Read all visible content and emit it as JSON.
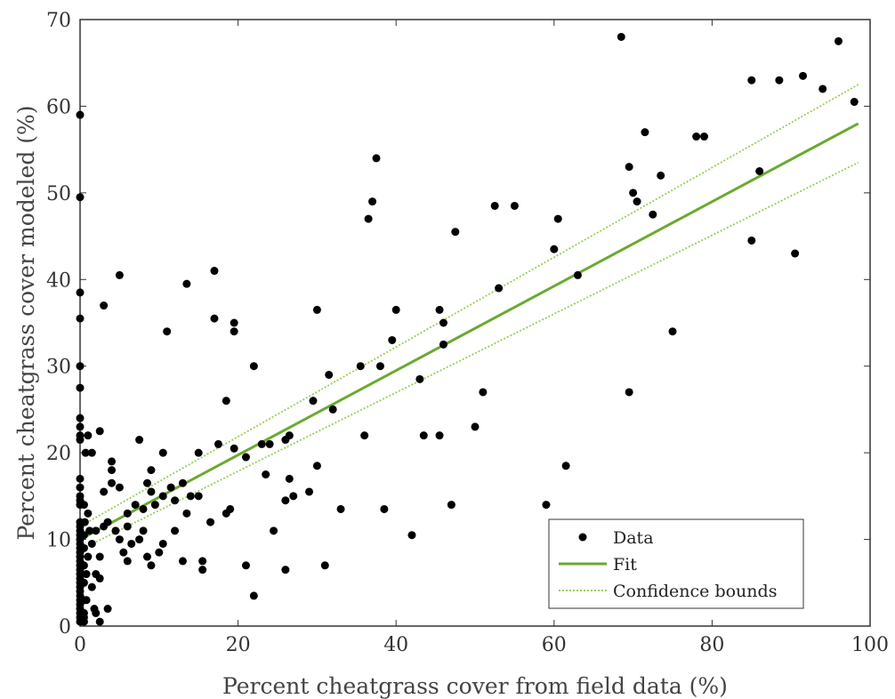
{
  "chart_data": {
    "type": "scatter",
    "title": "",
    "xlabel": "Percent cheatgrass cover from  field data (%)",
    "ylabel": "Percent cheatgrass cover modeled (%)",
    "xlim": [
      0,
      100
    ],
    "ylim": [
      0,
      70
    ],
    "xticks": [
      0,
      20,
      40,
      60,
      80,
      100
    ],
    "yticks": [
      0,
      10,
      20,
      30,
      40,
      50,
      60,
      70
    ],
    "grid": false,
    "legend_position": "bottom-right",
    "colors": {
      "data": "#000000",
      "fit": "#6aaa30",
      "bounds": "#9acd55"
    },
    "series": [
      {
        "name": "Data",
        "kind": "scatter",
        "points": [
          [
            0.0,
            59.0
          ],
          [
            0.0,
            49.5
          ],
          [
            0.0,
            38.5
          ],
          [
            0.0,
            35.5
          ],
          [
            0.0,
            30.0
          ],
          [
            0.0,
            27.5
          ],
          [
            0.0,
            24.0
          ],
          [
            0.0,
            23.0
          ],
          [
            0.0,
            22.0
          ],
          [
            0.0,
            21.5
          ],
          [
            0.0,
            17.0
          ],
          [
            0.0,
            16.0
          ],
          [
            0.0,
            15.0
          ],
          [
            0.0,
            14.5
          ],
          [
            0.0,
            14.0
          ],
          [
            0.0,
            12.0
          ],
          [
            0.0,
            11.5
          ],
          [
            0.0,
            11.0
          ],
          [
            0.0,
            10.5
          ],
          [
            0.0,
            10.0
          ],
          [
            0.0,
            9.5
          ],
          [
            0.0,
            9.0
          ],
          [
            0.0,
            8.5
          ],
          [
            0.0,
            8.0
          ],
          [
            0.0,
            7.5
          ],
          [
            0.0,
            7.0
          ],
          [
            0.0,
            6.5
          ],
          [
            0.0,
            6.0
          ],
          [
            0.0,
            5.5
          ],
          [
            0.0,
            5.0
          ],
          [
            0.0,
            4.5
          ],
          [
            0.0,
            4.0
          ],
          [
            0.0,
            3.5
          ],
          [
            0.0,
            3.0
          ],
          [
            0.0,
            2.5
          ],
          [
            0.0,
            2.0
          ],
          [
            0.0,
            1.5
          ],
          [
            0.0,
            1.0
          ],
          [
            0.0,
            0.5
          ],
          [
            0.5,
            14.0
          ],
          [
            0.5,
            10.5
          ],
          [
            0.5,
            9.0
          ],
          [
            0.5,
            7.0
          ],
          [
            0.5,
            5.0
          ],
          [
            0.5,
            3.0
          ],
          [
            0.5,
            1.5
          ],
          [
            0.5,
            1.0
          ],
          [
            0.5,
            0.5
          ],
          [
            0.6,
            12.0
          ],
          [
            0.7,
            20.0
          ],
          [
            0.8,
            6.0
          ],
          [
            0.8,
            3.0
          ],
          [
            1.0,
            22.0
          ],
          [
            1.0,
            13.0
          ],
          [
            1.0,
            8.0
          ],
          [
            1.2,
            11.0
          ],
          [
            1.5,
            20.0
          ],
          [
            1.5,
            9.5
          ],
          [
            1.5,
            4.5
          ],
          [
            1.8,
            2.0
          ],
          [
            2.0,
            11.0
          ],
          [
            2.0,
            6.0
          ],
          [
            2.0,
            1.5
          ],
          [
            2.5,
            22.5
          ],
          [
            2.5,
            8.0
          ],
          [
            2.5,
            5.5
          ],
          [
            2.5,
            0.5
          ],
          [
            3.0,
            37.0
          ],
          [
            3.0,
            15.5
          ],
          [
            3.0,
            11.5
          ],
          [
            3.5,
            12.0
          ],
          [
            3.5,
            2.0
          ],
          [
            4.0,
            19.0
          ],
          [
            4.0,
            18.0
          ],
          [
            4.0,
            16.5
          ],
          [
            4.5,
            11.0
          ],
          [
            5.0,
            40.5
          ],
          [
            5.0,
            16.0
          ],
          [
            5.0,
            10.0
          ],
          [
            5.5,
            8.5
          ],
          [
            6.0,
            13.0
          ],
          [
            6.0,
            11.5
          ],
          [
            6.0,
            7.5
          ],
          [
            6.5,
            9.5
          ],
          [
            7.0,
            14.0
          ],
          [
            7.5,
            21.5
          ],
          [
            7.5,
            10.0
          ],
          [
            8.0,
            13.5
          ],
          [
            8.0,
            11.0
          ],
          [
            8.5,
            16.5
          ],
          [
            8.5,
            8.0
          ],
          [
            9.0,
            18.0
          ],
          [
            9.0,
            15.5
          ],
          [
            9.0,
            7.0
          ],
          [
            9.5,
            14.0
          ],
          [
            10.0,
            8.5
          ],
          [
            10.5,
            20.0
          ],
          [
            10.5,
            15.0
          ],
          [
            10.5,
            9.5
          ],
          [
            11.0,
            34.0
          ],
          [
            11.5,
            16.0
          ],
          [
            12.0,
            14.5
          ],
          [
            12.0,
            11.0
          ],
          [
            13.0,
            16.5
          ],
          [
            13.0,
            7.5
          ],
          [
            13.5,
            39.5
          ],
          [
            13.5,
            13.0
          ],
          [
            14.0,
            15.0
          ],
          [
            15.0,
            20.0
          ],
          [
            15.0,
            15.0
          ],
          [
            15.5,
            7.5
          ],
          [
            15.5,
            6.5
          ],
          [
            16.5,
            12.0
          ],
          [
            17.0,
            41.0
          ],
          [
            17.0,
            35.5
          ],
          [
            17.5,
            21.0
          ],
          [
            18.5,
            26.0
          ],
          [
            18.5,
            13.0
          ],
          [
            19.0,
            13.5
          ],
          [
            19.5,
            35.0
          ],
          [
            19.5,
            34.0
          ],
          [
            19.5,
            20.5
          ],
          [
            21.0,
            19.5
          ],
          [
            21.0,
            7.0
          ],
          [
            22.0,
            30.0
          ],
          [
            22.0,
            3.5
          ],
          [
            23.0,
            21.0
          ],
          [
            23.5,
            17.5
          ],
          [
            24.0,
            21.0
          ],
          [
            24.5,
            11.0
          ],
          [
            26.0,
            21.5
          ],
          [
            26.0,
            14.5
          ],
          [
            26.0,
            6.5
          ],
          [
            26.5,
            22.0
          ],
          [
            26.5,
            17.0
          ],
          [
            27.0,
            15.0
          ],
          [
            29.0,
            15.5
          ],
          [
            29.5,
            26.0
          ],
          [
            30.0,
            36.5
          ],
          [
            30.0,
            18.5
          ],
          [
            31.0,
            7.0
          ],
          [
            31.5,
            29.0
          ],
          [
            32.0,
            25.0
          ],
          [
            33.0,
            13.5
          ],
          [
            35.5,
            30.0
          ],
          [
            36.0,
            22.0
          ],
          [
            36.5,
            47.0
          ],
          [
            37.0,
            49.0
          ],
          [
            37.5,
            54.0
          ],
          [
            38.0,
            30.0
          ],
          [
            38.5,
            13.5
          ],
          [
            39.5,
            33.0
          ],
          [
            40.0,
            36.5
          ],
          [
            42.0,
            10.5
          ],
          [
            43.0,
            28.5
          ],
          [
            43.5,
            22.0
          ],
          [
            45.5,
            36.5
          ],
          [
            45.5,
            22.0
          ],
          [
            46.0,
            35.0
          ],
          [
            46.0,
            32.5
          ],
          [
            47.0,
            14.0
          ],
          [
            47.5,
            45.5
          ],
          [
            50.0,
            23.0
          ],
          [
            51.0,
            27.0
          ],
          [
            52.5,
            48.5
          ],
          [
            53.0,
            39.0
          ],
          [
            55.0,
            48.5
          ],
          [
            59.0,
            14.0
          ],
          [
            60.0,
            43.5
          ],
          [
            60.5,
            47.0
          ],
          [
            61.5,
            18.5
          ],
          [
            63.0,
            40.5
          ],
          [
            68.5,
            68.0
          ],
          [
            69.5,
            53.0
          ],
          [
            69.5,
            27.0
          ],
          [
            70.0,
            50.0
          ],
          [
            70.5,
            49.0
          ],
          [
            71.5,
            57.0
          ],
          [
            72.5,
            47.5
          ],
          [
            73.5,
            52.0
          ],
          [
            75.0,
            34.0
          ],
          [
            78.0,
            56.5
          ],
          [
            79.0,
            56.5
          ],
          [
            85.0,
            63.0
          ],
          [
            85.0,
            44.5
          ],
          [
            86.0,
            52.5
          ],
          [
            88.5,
            63.0
          ],
          [
            90.5,
            43.0
          ],
          [
            91.5,
            63.5
          ],
          [
            94.0,
            62.0
          ],
          [
            96.0,
            67.5
          ],
          [
            98.0,
            60.5
          ]
        ]
      },
      {
        "name": "Fit",
        "kind": "line",
        "points": [
          [
            0,
            10.0
          ],
          [
            98.5,
            58.0
          ]
        ]
      },
      {
        "name": "Confidence bounds",
        "kind": "line-dotted",
        "upper": [
          [
            0,
            11.5
          ],
          [
            98.5,
            62.5
          ]
        ],
        "lower": [
          [
            0,
            8.8
          ],
          [
            98.5,
            53.5
          ]
        ]
      }
    ]
  }
}
